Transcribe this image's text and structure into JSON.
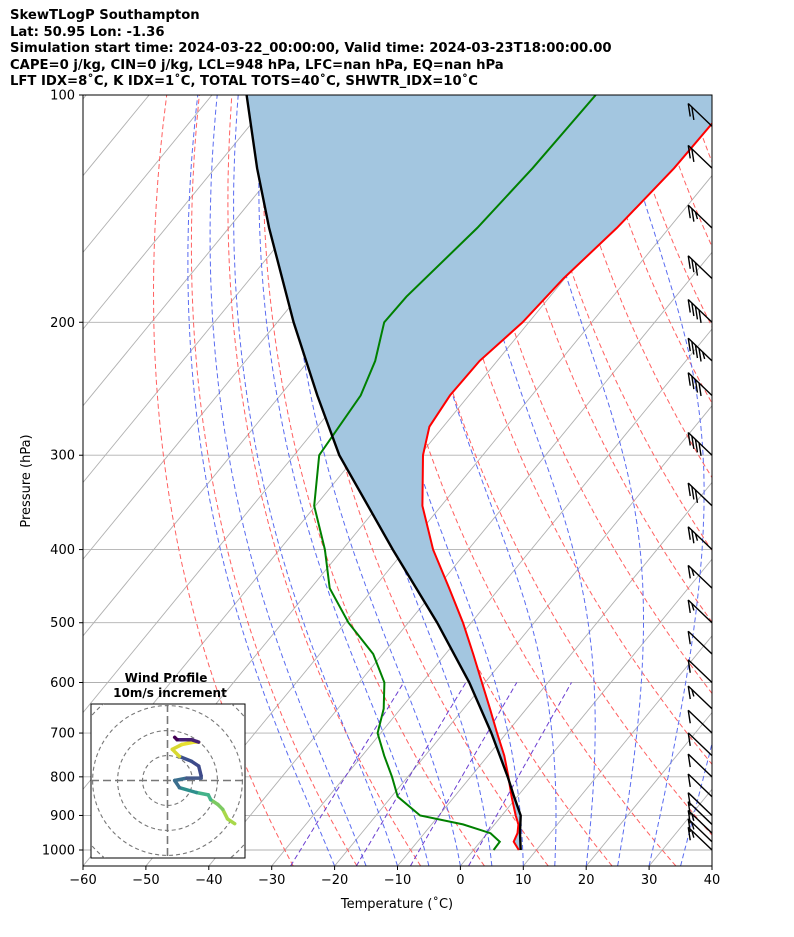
{
  "title": {
    "line1": "SkewTLogP Southampton",
    "line2": "Lat: 50.95   Lon: -1.36",
    "line3": "Simulation start time: 2024-03-22_00:00:00, Valid time: 2024-03-23T18:00:00.00",
    "line4": "CAPE=0 j/kg, CIN=0 j/kg, LCL=948 hPa, LFC=nan hPa, EQ=nan hPa",
    "line5": "LFT IDX=8˚C, K IDX=1˚C, TOTAL TOTS=40˚C, SHWTR_IDX=10˚C"
  },
  "chart_data": {
    "type": "line",
    "xlabel": "Temperature (˚C)",
    "ylabel": "Pressure (hPa)",
    "xlim": [
      -60,
      40
    ],
    "ylim": [
      1050,
      100
    ],
    "y_scale": "log",
    "skew": true,
    "xticks": [
      -60,
      -50,
      -40,
      -30,
      -20,
      -10,
      0,
      10,
      20,
      30,
      40
    ],
    "yticks": [
      100,
      200,
      300,
      400,
      500,
      600,
      700,
      800,
      900,
      1000
    ],
    "grid": true,
    "colors": {
      "temperature": "#ff0000",
      "dewpoint": "#008000",
      "parcel": "#000000",
      "cin_fill": "#a3c6e0",
      "dry_adiabats": "#ff6060",
      "moist_adiabats": "#5a6cf0",
      "mixing_ratio": "#6a3dd0",
      "isotherms": "#b0b0b0"
    },
    "series": [
      {
        "key": "temperature",
        "pressure": [
          1000,
          975,
          950,
          925,
          900,
          850,
          800,
          750,
          700,
          650,
          600,
          550,
          500,
          450,
          400,
          350,
          300,
          275,
          250,
          225,
          200,
          175,
          150,
          125,
          110,
          100
        ],
        "values": [
          7.2,
          5.3,
          4.8,
          3.8,
          2.2,
          -0.9,
          -4.0,
          -7.4,
          -11.5,
          -15.8,
          -20.5,
          -25.6,
          -31.3,
          -38.0,
          -45.6,
          -53.0,
          -59.5,
          -62.2,
          -63.0,
          -62.8,
          -61.0,
          -60.2,
          -58.3,
          -57.0,
          -56.8,
          -56.5
        ]
      },
      {
        "key": "dewpoint",
        "pressure": [
          1000,
          975,
          950,
          925,
          900,
          850,
          800,
          750,
          700,
          650,
          600,
          550,
          500,
          450,
          400,
          350,
          300,
          250,
          225,
          200,
          185,
          150,
          125,
          100
        ],
        "values": [
          3.2,
          3.1,
          0.5,
          -5.0,
          -13.0,
          -19.0,
          -22.5,
          -26.5,
          -30.5,
          -32.7,
          -36.0,
          -41.5,
          -49.5,
          -57.0,
          -62.8,
          -70.2,
          -76.0,
          -77.2,
          -79.4,
          -83.0,
          -82.8,
          -80.5,
          -79.5,
          -79.0
        ]
      },
      {
        "key": "parcel",
        "pressure": [
          1000,
          948,
          900,
          850,
          800,
          700,
          600,
          500,
          400,
          300,
          250,
          200,
          150,
          125,
          100
        ],
        "values": [
          7.5,
          5.1,
          3.0,
          -0.5,
          -4.1,
          -12.4,
          -22.5,
          -35.4,
          -52.0,
          -72.8,
          -84.1,
          -97.4,
          -113.6,
          -123.3,
          -134.5
        ]
      }
    ],
    "wind_barbs": [
      {
        "pressure": 1000,
        "speed_kt": 15
      },
      {
        "pressure": 975,
        "speed_kt": 15
      },
      {
        "pressure": 950,
        "speed_kt": 15
      },
      {
        "pressure": 925,
        "speed_kt": 10
      },
      {
        "pressure": 900,
        "speed_kt": 10
      },
      {
        "pressure": 850,
        "speed_kt": 10
      },
      {
        "pressure": 800,
        "speed_kt": 10
      },
      {
        "pressure": 750,
        "speed_kt": 10
      },
      {
        "pressure": 700,
        "speed_kt": 10
      },
      {
        "pressure": 650,
        "speed_kt": 15
      },
      {
        "pressure": 600,
        "speed_kt": 10
      },
      {
        "pressure": 550,
        "speed_kt": 10
      },
      {
        "pressure": 500,
        "speed_kt": 15
      },
      {
        "pressure": 450,
        "speed_kt": 15
      },
      {
        "pressure": 400,
        "speed_kt": 25
      },
      {
        "pressure": 350,
        "speed_kt": 30
      },
      {
        "pressure": 300,
        "speed_kt": 40
      },
      {
        "pressure": 250,
        "speed_kt": 40
      },
      {
        "pressure": 225,
        "speed_kt": 45
      },
      {
        "pressure": 200,
        "speed_kt": 40
      },
      {
        "pressure": 175,
        "speed_kt": 30
      },
      {
        "pressure": 150,
        "speed_kt": 25
      },
      {
        "pressure": 125,
        "speed_kt": 20
      },
      {
        "pressure": 110,
        "speed_kt": 20
      }
    ],
    "hodograph": {
      "title": "Wind Profile",
      "subtitle": "10m/s increment",
      "ring_increment_ms": 10,
      "rings": 3,
      "points_u": [
        14.0,
        12.5,
        11.5,
        10.5,
        9.0,
        8.5,
        6.0,
        2.5,
        1.5,
        4.0,
        7.0,
        7.0,
        6.5,
        5.0,
        2.5,
        1.0,
        3.0,
        5.5,
        6.5,
        5.0,
        2.0,
        1.5
      ],
      "points_v": [
        -7.0,
        -6.0,
        -4.0,
        -3.0,
        -2.0,
        -1.0,
        -0.5,
        0.5,
        2.0,
        2.5,
        2.5,
        3.0,
        5.0,
        6.0,
        7.0,
        8.5,
        9.5,
        10.0,
        10.0,
        10.5,
        10.5,
        11.0
      ]
    }
  }
}
